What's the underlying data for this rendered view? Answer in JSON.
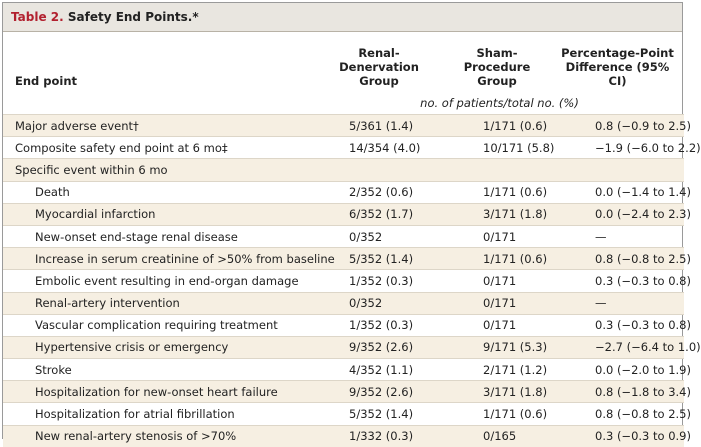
{
  "title": {
    "label": "Table 2.",
    "text": "Safety End Points.*"
  },
  "table": {
    "columns": [
      "End point",
      "Renal-Denervation Group",
      "Sham-Procedure Group",
      "Percentage-Point Difference (95% CI)"
    ],
    "unit_note": "no. of patients/total no. (%)",
    "rows": [
      [
        "Major adverse event†",
        "5/361 (1.4)",
        "1/171 (0.6)",
        "0.8 (−0.9 to 2.5)"
      ],
      [
        "Composite safety end point at 6 mo‡",
        "14/354 (4.0)",
        "10/171 (5.8)",
        "−1.9 (−6.0 to 2.2)"
      ]
    ],
    "subgroup": {
      "label": "Specific event within 6 mo",
      "rows": [
        [
          "Death",
          "2/352 (0.6)",
          "1/171 (0.6)",
          "0.0 (−1.4 to 1.4)"
        ],
        [
          "Myocardial infarction",
          "6/352 (1.7)",
          "3/171 (1.8)",
          "0.0 (−2.4 to 2.3)"
        ],
        [
          "New-onset end-stage renal disease",
          "0/352",
          "0/171",
          "—"
        ],
        [
          "Increase in serum creatinine of >50% from baseline",
          "5/352 (1.4)",
          "1/171 (0.6)",
          "0.8 (−0.8 to 2.5)"
        ],
        [
          "Embolic event resulting in end-organ damage",
          "1/352 (0.3)",
          "0/171",
          "0.3 (−0.3 to 0.8)"
        ],
        [
          "Renal-artery intervention",
          "0/352",
          "0/171",
          "—"
        ],
        [
          "Vascular complication requiring treatment",
          "1/352 (0.3)",
          "0/171",
          "0.3 (−0.3 to 0.8)"
        ],
        [
          "Hypertensive crisis or emergency",
          "9/352 (2.6)",
          "9/171 (5.3)",
          "−2.7 (−6.4 to 1.0)"
        ],
        [
          "Stroke",
          "4/352 (1.1)",
          "2/171 (1.2)",
          "0.0 (−2.0 to 1.9)"
        ],
        [
          "Hospitalization for new-onset heart failure",
          "9/352 (2.6)",
          "3/171 (1.8)",
          "0.8 (−1.8 to 3.4)"
        ],
        [
          "Hospitalization for atrial fibrillation",
          "5/352 (1.4)",
          "1/171 (0.6)",
          "0.8 (−0.8 to 2.5)"
        ],
        [
          "New renal-artery stenosis of >70%",
          "1/332 (0.3)",
          "0/165",
          "0.3 (−0.3 to 0.9)"
        ]
      ]
    }
  }
}
